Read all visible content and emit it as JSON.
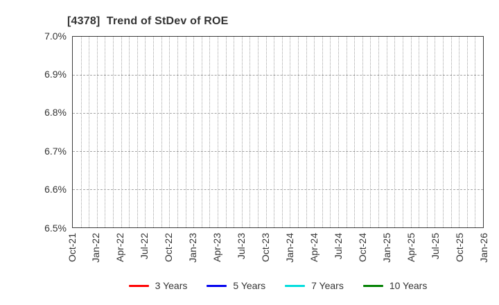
{
  "header": {
    "title": "[4378]  Trend of StDev of ROE"
  },
  "chart_data": {
    "type": "line",
    "title": "[4378]  Trend of StDev of ROE",
    "x_tick_labels": [
      "Oct-21",
      "Jan-22",
      "Apr-22",
      "Jul-22",
      "Oct-22",
      "Jan-23",
      "Apr-23",
      "Jul-23",
      "Oct-23",
      "Jan-24",
      "Apr-24",
      "Jul-24",
      "Oct-24",
      "Jan-25",
      "Apr-25",
      "Jul-25",
      "Oct-25",
      "Jan-26"
    ],
    "x_minor_gridlines_per_label": 3,
    "y_tick_labels": [
      "6.5%",
      "6.6%",
      "6.7%",
      "6.8%",
      "6.9%",
      "7.0%"
    ],
    "ylim": [
      6.5,
      7.0
    ],
    "xlabel": "",
    "ylabel": "",
    "grid": "on",
    "legend_position": "bottom",
    "series": [
      {
        "name": "3 Years",
        "color": "#ff0000",
        "values": []
      },
      {
        "name": "5 Years",
        "color": "#0000ee",
        "values": []
      },
      {
        "name": "7 Years",
        "color": "#00dddd",
        "values": []
      },
      {
        "name": "10 Years",
        "color": "#008000",
        "values": []
      }
    ]
  },
  "colors": {
    "background": "#ffffff",
    "plot_border": "#3a3a3a",
    "gridline": "#a3a3a3",
    "text": "#333333"
  }
}
